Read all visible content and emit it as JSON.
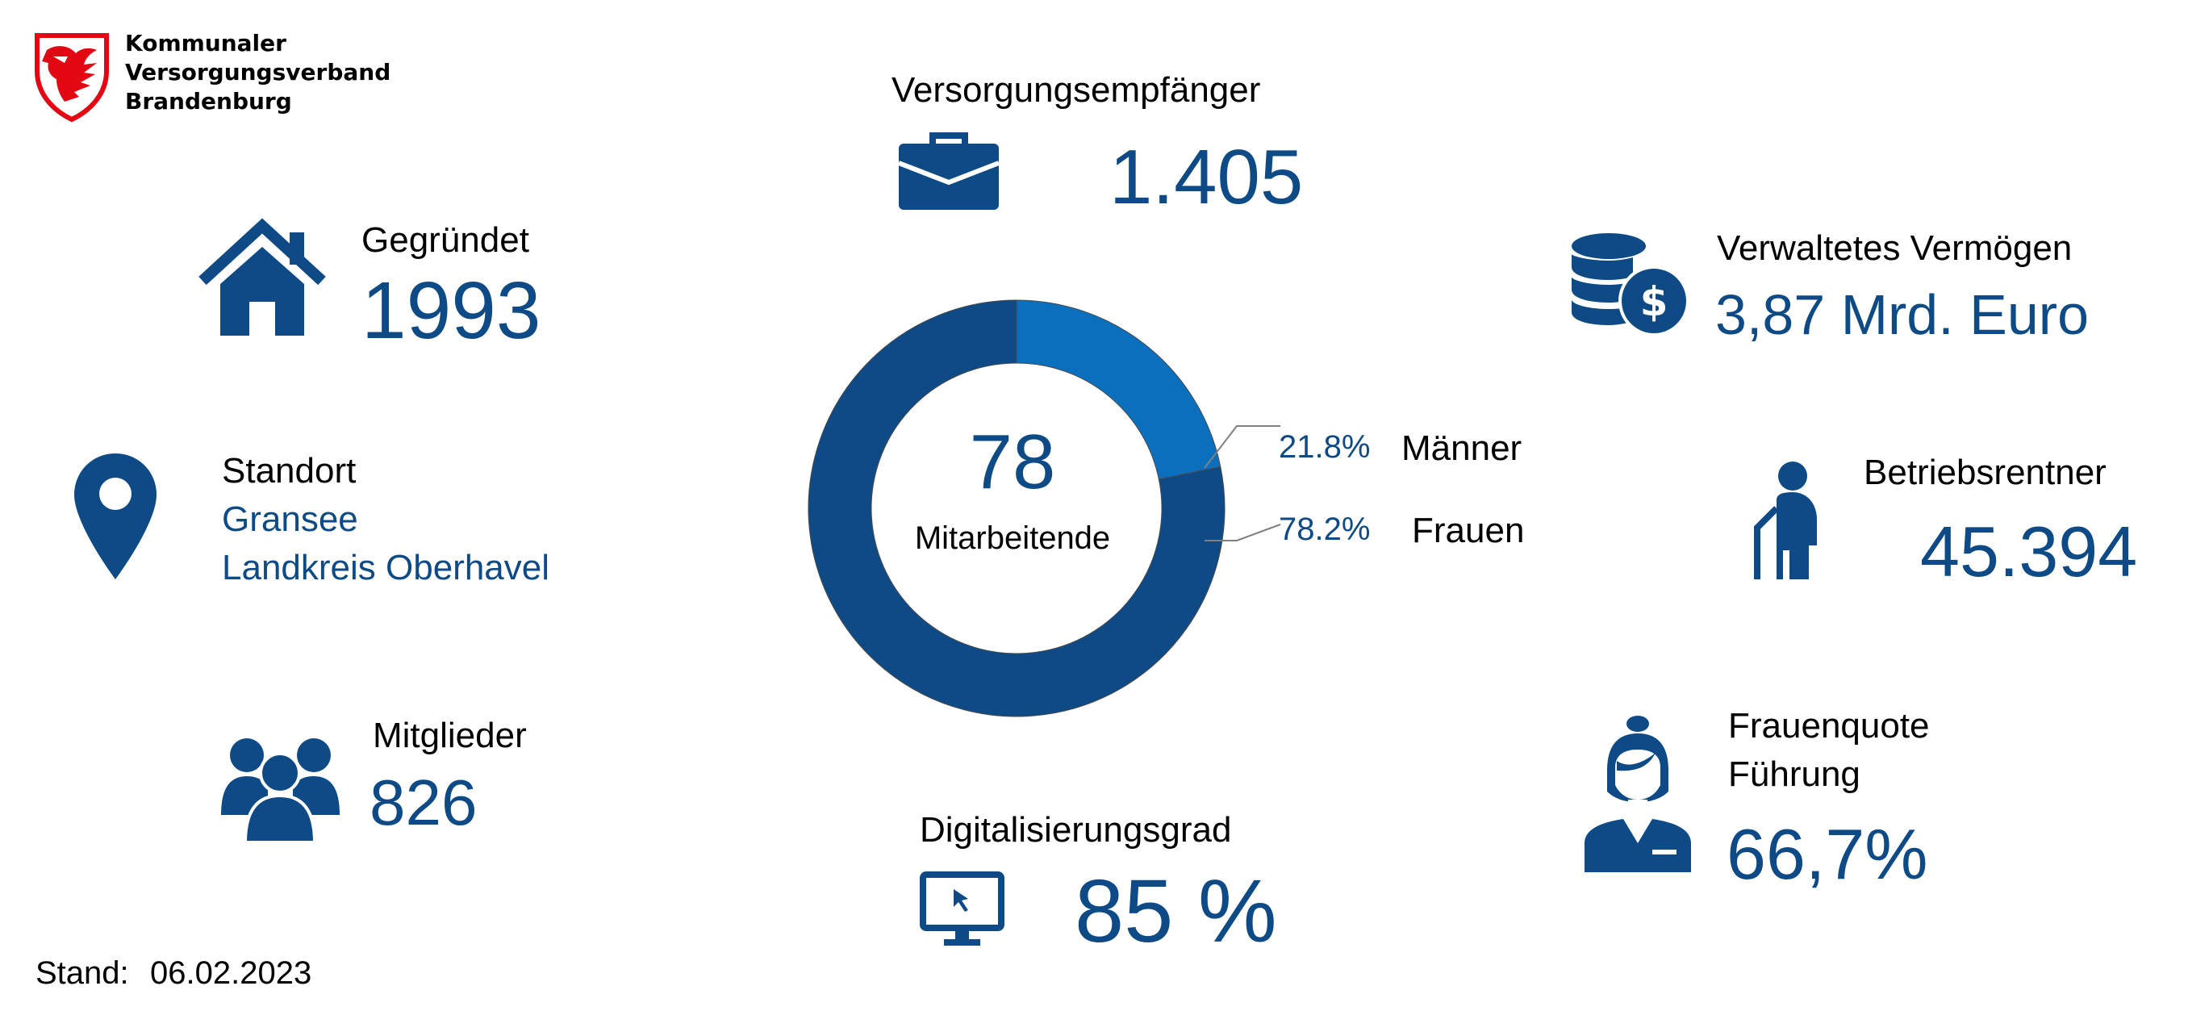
{
  "logo": {
    "line1": "Kommunaler",
    "line2": "Versorgungsverband",
    "line3": "Brandenburg",
    "color": "#e30613"
  },
  "colors": {
    "primary": "#0d4a86",
    "secondary": "#0a70bd"
  },
  "founded": {
    "label": "Gegründet",
    "value": "1993",
    "icon": "house-icon"
  },
  "location": {
    "label": "Standort",
    "line1": "Gransee",
    "line2": "Landkreis Oberhavel",
    "icon": "location-pin-icon"
  },
  "members": {
    "label": "Mitglieder",
    "value": "826",
    "icon": "people-group-icon"
  },
  "pensionRecipients": {
    "label": "Versorgungsempfänger",
    "value": "1.405",
    "icon": "briefcase-icon"
  },
  "employees": {
    "value": "78",
    "label": "Mitarbeitende"
  },
  "digitalization": {
    "label": "Digitalisierungsgrad",
    "value": "85 %",
    "icon": "monitor-icon"
  },
  "assets": {
    "label": "Verwaltetes Vermögen",
    "value": "3,87 Mrd. Euro",
    "icon": "coins-dollar-icon"
  },
  "companyPensioners": {
    "label": "Betriebsrentner",
    "value": "45.394",
    "icon": "elderly-person-icon"
  },
  "womenQuota": {
    "label_line1": "Frauenquote",
    "label_line2": "Führung",
    "value": "66,7%",
    "icon": "woman-icon"
  },
  "footer": {
    "label": "Stand:",
    "date": "06.02.2023"
  },
  "chart_data": {
    "type": "pie",
    "categories": [
      "Männer",
      "Frauen"
    ],
    "values": [
      21.8,
      78.2
    ],
    "value_labels": [
      "21.8%",
      "78.2%"
    ],
    "colors": [
      "#0a70bd",
      "#0d4a86"
    ],
    "center_value": "78",
    "center_label": "Mitarbeitende"
  }
}
